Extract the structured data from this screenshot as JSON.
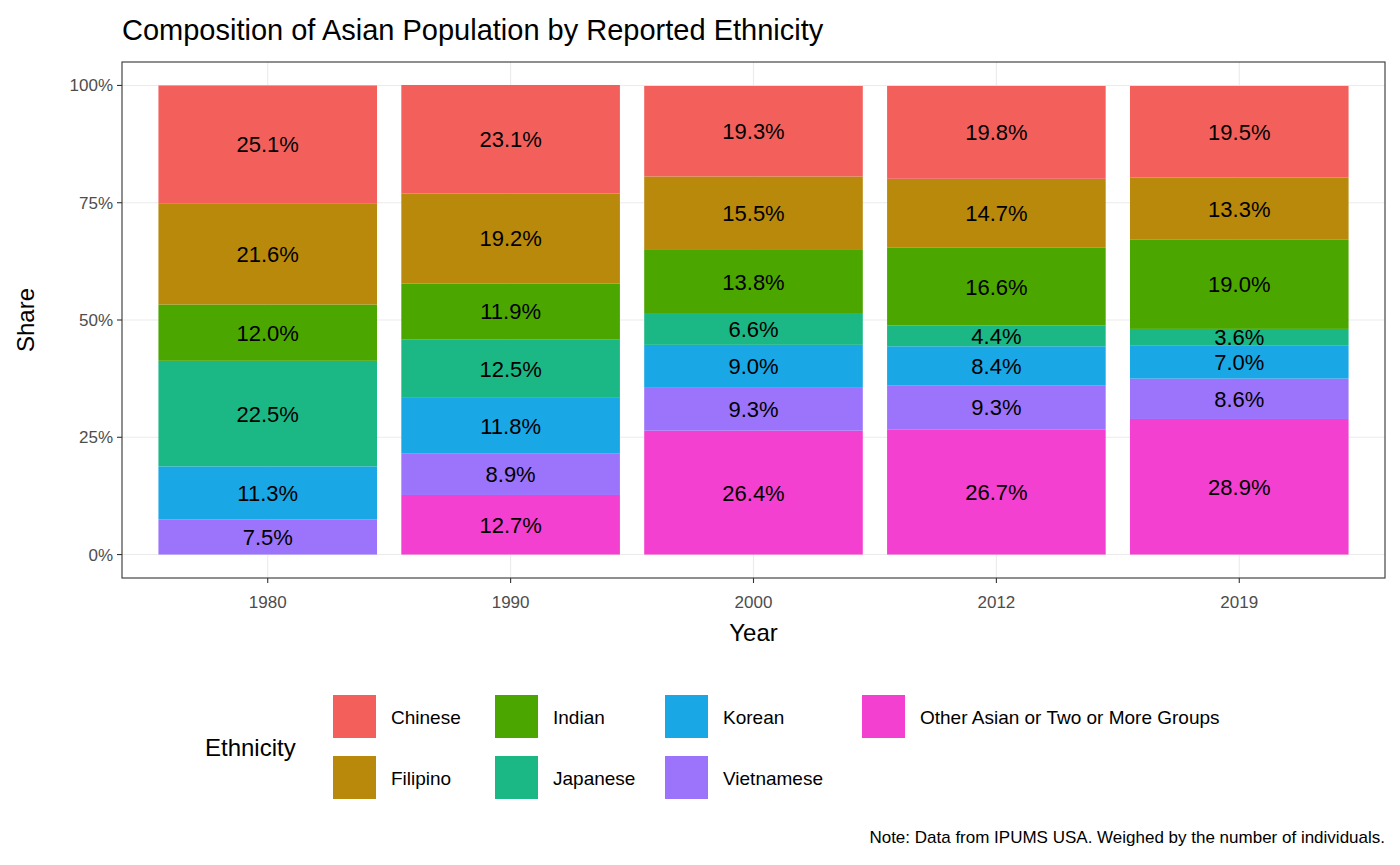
{
  "chart_data": {
    "type": "bar",
    "stacked": true,
    "data_labels": true,
    "grid": true,
    "legend": "bottom",
    "title": "Composition of Asian Population by Reported Ethnicity",
    "x_label": "Year",
    "y_label": "Share",
    "legend_title": "Ethnicity",
    "note": "Note: Data from IPUMS USA. Weighed by the number of individuals.",
    "categories": [
      "1980",
      "1990",
      "2000",
      "2012",
      "2019"
    ],
    "ylim": [
      -5,
      105
    ],
    "yticks": [
      {
        "value": 0,
        "label": "0%"
      },
      {
        "value": 25,
        "label": "25%"
      },
      {
        "value": 50,
        "label": "50%"
      },
      {
        "value": 75,
        "label": "75%"
      },
      {
        "value": 100,
        "label": "100%"
      }
    ],
    "series": [
      {
        "name": "Chinese",
        "color": "#f3605c",
        "values": [
          25.1,
          23.1,
          19.3,
          19.8,
          19.5
        ],
        "value_labels": [
          "25.1%",
          "23.1%",
          "19.3%",
          "19.8%",
          "19.5%"
        ]
      },
      {
        "name": "Filipino",
        "color": "#b8890a",
        "values": [
          21.6,
          19.2,
          15.5,
          14.7,
          13.3
        ],
        "value_labels": [
          "21.6%",
          "19.2%",
          "15.5%",
          "14.7%",
          "13.3%"
        ]
      },
      {
        "name": "Indian",
        "color": "#4ca600",
        "values": [
          12.0,
          11.9,
          13.8,
          16.6,
          19.0
        ],
        "value_labels": [
          "12.0%",
          "11.9%",
          "13.8%",
          "16.6%",
          "19.0%"
        ]
      },
      {
        "name": "Japanese",
        "color": "#1bb886",
        "values": [
          22.5,
          12.5,
          6.6,
          4.4,
          3.6
        ],
        "value_labels": [
          "22.5%",
          "12.5%",
          "6.6%",
          "4.4%",
          "3.6%"
        ]
      },
      {
        "name": "Korean",
        "color": "#1aa7e6",
        "values": [
          11.3,
          11.8,
          9.0,
          8.4,
          7.0
        ],
        "value_labels": [
          "11.3%",
          "11.8%",
          "9.0%",
          "8.4%",
          "7.0%"
        ]
      },
      {
        "name": "Vietnamese",
        "color": "#9b74fb",
        "values": [
          7.5,
          8.9,
          9.3,
          9.3,
          8.6
        ],
        "value_labels": [
          "7.5%",
          "8.9%",
          "9.3%",
          "9.3%",
          "8.6%"
        ]
      },
      {
        "name": "Other Asian or Two or More Groups",
        "color": "#f340d0",
        "values": [
          null,
          12.7,
          26.4,
          26.7,
          28.9
        ],
        "value_labels": [
          null,
          "12.7%",
          "26.4%",
          "26.7%",
          "28.9%"
        ]
      }
    ]
  }
}
